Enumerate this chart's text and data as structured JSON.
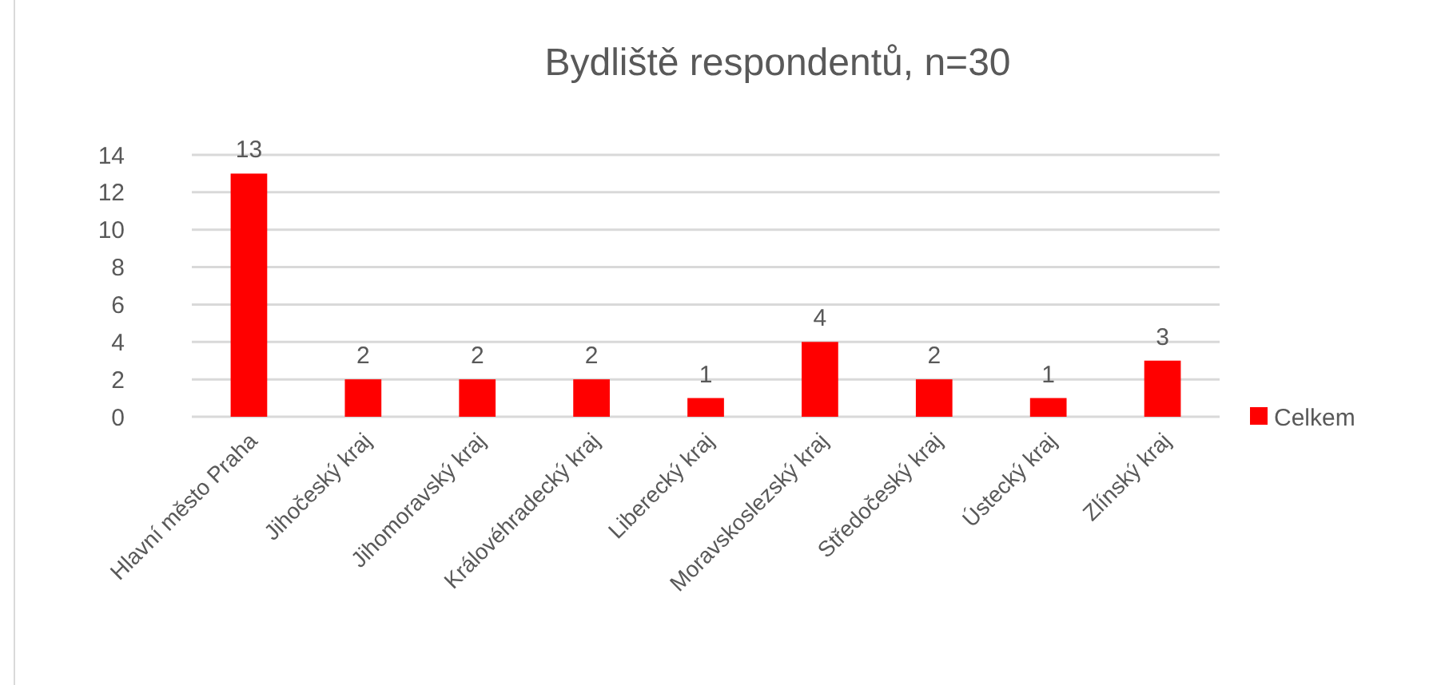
{
  "chart_data": {
    "type": "bar",
    "title": "Bydliště respondentů, n=30",
    "categories": [
      "Hlavní město Praha",
      "Jihočeský kraj",
      "Jihomoravský kraj",
      "Královéhradecký kraj",
      "Liberecký kraj",
      "Moravskoslezský kraj",
      "Středočeský kraj",
      "Ústecký kraj",
      "Zlínský kraj"
    ],
    "series": [
      {
        "name": "Celkem",
        "color": "#ff0000",
        "values": [
          13,
          2,
          2,
          2,
          1,
          4,
          2,
          1,
          3
        ]
      }
    ],
    "ylim": [
      0,
      14
    ],
    "yticks": [
      0,
      2,
      4,
      6,
      8,
      10,
      12,
      14
    ],
    "grid": "y",
    "data_labels": true,
    "legend": "right"
  }
}
